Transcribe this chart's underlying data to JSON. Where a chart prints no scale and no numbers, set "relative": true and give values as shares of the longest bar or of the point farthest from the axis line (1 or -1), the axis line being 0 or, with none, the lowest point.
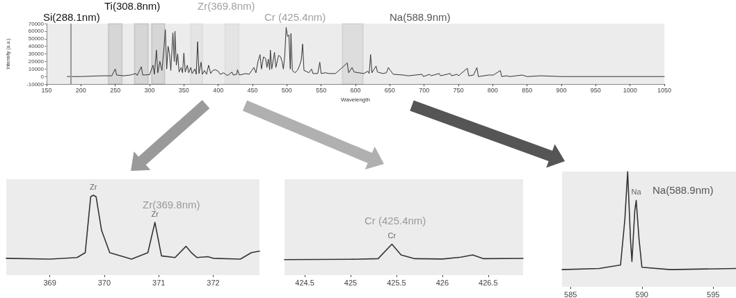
{
  "chart_data": [
    {
      "type": "line",
      "xlabel": "Wavelength",
      "ylabel": "Intensity (a.u.)",
      "color": "#333333",
      "xlim": [
        150,
        1050
      ],
      "xticks": [
        150,
        200,
        250,
        300,
        350,
        400,
        450,
        500,
        550,
        600,
        650,
        700,
        750,
        800,
        850,
        900,
        950,
        1000,
        1050
      ],
      "ylim": [
        -10000,
        70000
      ],
      "yticks": [
        -10000,
        0,
        10000,
        20000,
        30000,
        40000,
        50000,
        60000,
        70000
      ],
      "grid": false,
      "annotations": [
        "Si(288.1nm)",
        "Ti(308.8nm)",
        "Zr(369.8nm)",
        "Cr (425.4nm)",
        "Na(588.9nm)"
      ],
      "bands": [
        {
          "axis": "x",
          "from": 240,
          "to": 260,
          "color": "#111111"
        },
        {
          "axis": "x",
          "from": 278,
          "to": 298,
          "color": "#111111"
        },
        {
          "axis": "x",
          "from": 303,
          "to": 322,
          "color": "#111111"
        },
        {
          "axis": "x",
          "from": 360,
          "to": 377,
          "color": "#a0a0a0"
        },
        {
          "axis": "x",
          "from": 410,
          "to": 430,
          "color": "#a0a0a0"
        },
        {
          "axis": "x",
          "from": 581,
          "to": 611,
          "color": "#555555"
        }
      ],
      "ref_lines": [
        {
          "axis": "x",
          "value": 185,
          "color": "#999999"
        }
      ],
      "x": [
        180,
        200,
        230,
        245,
        250,
        252,
        262,
        272,
        280,
        282,
        288,
        290,
        300,
        305,
        307,
        310,
        312,
        315,
        318,
        321,
        323,
        325,
        327,
        329,
        331,
        334,
        336,
        337,
        339,
        341,
        343,
        346,
        348,
        350,
        352,
        355,
        357,
        360,
        362,
        366,
        368,
        370,
        372,
        375,
        377,
        380,
        383,
        386,
        389,
        392,
        396,
        400,
        403,
        408,
        412,
        415,
        420,
        422,
        427,
        428,
        431,
        440,
        445,
        452,
        455,
        458,
        461,
        463,
        466,
        469,
        471,
        473,
        475,
        476,
        478,
        482,
        484,
        488,
        491,
        493,
        495,
        497,
        499,
        501,
        503,
        505,
        506,
        508,
        512,
        516,
        519,
        521,
        523,
        525,
        528,
        532,
        536,
        538,
        545,
        548,
        550,
        556,
        562,
        571,
        588,
        590,
        595,
        598,
        605,
        612,
        618,
        620,
        622,
        624,
        630,
        632,
        640,
        645,
        648,
        650,
        655,
        670,
        677,
        697,
        699,
        708,
        710,
        722,
        724,
        738,
        740,
        748,
        750,
        763,
        765,
        772,
        777,
        779,
        794,
        801,
        811,
        813,
        820,
        825,
        843,
        850,
        870,
        900,
        1050
      ],
      "values": [
        0,
        0,
        1000,
        1000,
        10000,
        2000,
        1000,
        2000,
        4000,
        1500,
        13000,
        2000,
        2500,
        15000,
        3000,
        35000,
        5000,
        20000,
        8000,
        38000,
        62000,
        10000,
        40000,
        30000,
        8000,
        58000,
        20000,
        60000,
        15000,
        30000,
        6000,
        12000,
        5000,
        31000,
        6000,
        15000,
        5000,
        12000,
        4000,
        10000,
        3000,
        46000,
        4000,
        19000,
        3000,
        8000,
        3000,
        15000,
        4000,
        8000,
        9000,
        7000,
        3000,
        5000,
        2000,
        2000,
        6000,
        2000,
        3000,
        9000,
        2000,
        4000,
        3000,
        12000,
        5000,
        20000,
        29000,
        10000,
        26000,
        24000,
        12000,
        23000,
        9000,
        35000,
        10000,
        32000,
        12000,
        28000,
        26000,
        20000,
        10000,
        28000,
        65000,
        53000,
        55000,
        10000,
        57000,
        8000,
        5000,
        9000,
        16000,
        22000,
        43000,
        8000,
        7000,
        5000,
        10000,
        4000,
        4000,
        19000,
        4000,
        5000,
        4000,
        4000,
        18000,
        5000,
        12000,
        6000,
        5000,
        4000,
        7000,
        4000,
        29000,
        5000,
        14000,
        6000,
        4000,
        5000,
        12000,
        9000,
        3000,
        2000,
        1000,
        3000,
        0,
        3000,
        1000,
        4000,
        1000,
        4000,
        1000,
        3000,
        1000,
        11000,
        1000,
        2000,
        12000,
        0,
        2000,
        2000,
        8000,
        0,
        1000,
        0,
        2000,
        0,
        1000,
        0,
        0
      ]
    },
    {
      "type": "line",
      "title": "Zr(369.8nm)",
      "relative": true,
      "color": "#333333",
      "xlim": [
        368.2,
        372.85
      ],
      "xticks": [
        369,
        370,
        371,
        372
      ],
      "annotations": [
        {
          "text": "Zr",
          "x": 369.8,
          "y": 1
        },
        {
          "text": "Zr",
          "x": 370.93,
          "y": 0.66
        }
      ],
      "x": [
        368.2,
        369,
        369.5,
        369.65,
        369.75,
        369.8,
        369.85,
        369.95,
        370.1,
        370.5,
        370.8,
        370.93,
        371.05,
        371.3,
        371.5,
        371.6,
        371.7,
        371.9,
        372,
        372.5,
        372.7,
        372.85
      ],
      "values": [
        0.21,
        0.2,
        0.22,
        0.28,
        0.98,
        1,
        0.98,
        0.56,
        0.28,
        0.2,
        0.28,
        0.66,
        0.24,
        0.22,
        0.36,
        0.28,
        0.22,
        0.23,
        0.21,
        0.2,
        0.28,
        0.3
      ]
    },
    {
      "type": "line",
      "title": "Cr (425.4nm)",
      "relative": true,
      "color": "#333333",
      "xlim": [
        424.28,
        426.88
      ],
      "xticks": [
        424.5,
        425,
        425.5,
        426,
        426.5
      ],
      "annotations": [
        {
          "text": "Cr",
          "x": 425.45,
          "y": 1
        }
      ],
      "x": [
        424.28,
        425,
        425.3,
        425.45,
        425.55,
        425.7,
        426,
        426.2,
        426.33,
        426.45,
        426.88
      ],
      "values": [
        0.5,
        0.51,
        0.53,
        1,
        0.65,
        0.53,
        0.52,
        0.58,
        0.65,
        0.53,
        0.54
      ]
    },
    {
      "type": "line",
      "title": "Na(588.9nm)",
      "relative": true,
      "color": "#333333",
      "xlim": [
        584.4,
        596.6
      ],
      "xticks": [
        585,
        590,
        595
      ],
      "annotations": [
        {
          "text": "Na",
          "x": 589.6,
          "y": 0.75
        }
      ],
      "x": [
        584.4,
        587,
        588.5,
        588.8,
        589,
        589.2,
        589.3,
        589.5,
        589.6,
        589.8,
        590,
        592,
        596.6
      ],
      "values": [
        0.15,
        0.16,
        0.19,
        0.58,
        1,
        0.41,
        0.22,
        0.66,
        0.75,
        0.41,
        0.17,
        0.15,
        0.16
      ]
    }
  ]
}
